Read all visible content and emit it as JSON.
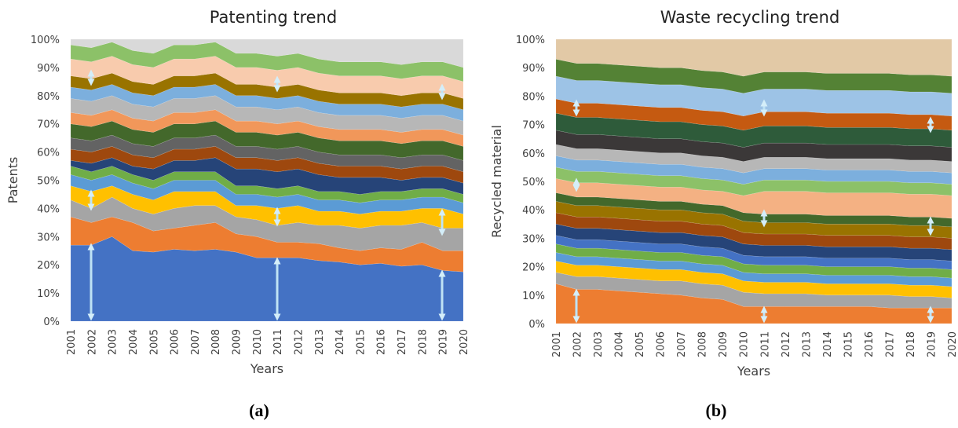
{
  "chart_data": [
    {
      "type": "area",
      "stacked": true,
      "title": "Patenting trend",
      "y_label": "Patents",
      "x_label": "Years",
      "caption": "(a)",
      "categories": [
        "2001",
        "2002",
        "2003",
        "2004",
        "2005",
        "2006",
        "2007",
        "2008",
        "2009",
        "2010",
        "2011",
        "2012",
        "2013",
        "2014",
        "2015",
        "2016",
        "2017",
        "2018",
        "2019",
        "2020"
      ],
      "ylim": [
        0,
        100
      ],
      "yticks": [
        {
          "value": 0,
          "label": "0%"
        },
        {
          "value": 10,
          "label": "10%"
        },
        {
          "value": 20,
          "label": "20%"
        },
        {
          "value": 30,
          "label": "30%"
        },
        {
          "value": 40,
          "label": "40%"
        },
        {
          "value": 50,
          "label": "50%"
        },
        {
          "value": 60,
          "label": "60%"
        },
        {
          "value": 70,
          "label": "70%"
        },
        {
          "value": 80,
          "label": "80%"
        },
        {
          "value": 90,
          "label": "90%"
        },
        {
          "value": 100,
          "label": "100%"
        }
      ],
      "series": [
        {
          "color": "#4472c4",
          "values": [
            27,
            27,
            30,
            25,
            24.5,
            25.5,
            25,
            25.5,
            24.5,
            22.5,
            22.5,
            22.5,
            21.5,
            21,
            20,
            20.5,
            19.5,
            20,
            18,
            17.5
          ]
        },
        {
          "color": "#ed7d31",
          "values": [
            10,
            8,
            7,
            10,
            7.5,
            7.5,
            9,
            9.5,
            6.5,
            7.5,
            5.5,
            5.5,
            6,
            5,
            5,
            5.5,
            6,
            8,
            7,
            7.5
          ]
        },
        {
          "color": "#a5a5a5",
          "values": [
            6,
            5,
            7,
            5,
            6,
            7,
            7,
            6,
            6,
            6,
            6,
            7,
            6.5,
            8,
            8,
            8,
            8.5,
            7,
            8,
            8
          ]
        },
        {
          "color": "#ffc000",
          "values": [
            5,
            6,
            4,
            5,
            5,
            6,
            5,
            5,
            4,
            5,
            6,
            6,
            5,
            5,
            5,
            5,
            5,
            5,
            7,
            5
          ]
        },
        {
          "color": "#5b9bd5",
          "values": [
            4,
            4,
            4,
            4,
            4,
            4,
            4,
            4,
            4,
            4,
            4,
            4,
            4,
            4,
            4,
            4,
            4,
            4,
            4,
            4
          ]
        },
        {
          "color": "#70ad47",
          "values": [
            3,
            3,
            3,
            3,
            3,
            3,
            3,
            3,
            3,
            3,
            3,
            3,
            3,
            3,
            3,
            3,
            3,
            3,
            3,
            3
          ]
        },
        {
          "color": "#264478",
          "values": [
            2,
            3,
            3,
            3,
            4,
            4,
            4,
            5,
            6,
            6,
            6,
            6,
            6,
            5,
            6,
            5,
            4,
            4,
            4,
            4
          ]
        },
        {
          "color": "#9e480e",
          "values": [
            4,
            4,
            4,
            4,
            4,
            4,
            4,
            4,
            4,
            4,
            4,
            4,
            4,
            4,
            4,
            4,
            4,
            4,
            4,
            4
          ]
        },
        {
          "color": "#636363",
          "values": [
            4,
            4,
            4,
            4,
            4,
            4,
            4,
            4,
            4,
            4,
            4,
            4,
            4,
            4,
            4,
            4,
            4,
            4,
            4,
            4
          ]
        },
        {
          "color": "#43682b",
          "values": [
            5,
            5,
            5,
            5,
            5,
            5,
            5,
            5,
            5,
            5,
            5,
            5,
            5,
            5,
            5,
            5,
            5,
            5,
            5,
            5
          ]
        },
        {
          "color": "#f1975a",
          "values": [
            4,
            4,
            4,
            4,
            4,
            4,
            4,
            4,
            4,
            4,
            4,
            4,
            4,
            4,
            4,
            4,
            4,
            4,
            4,
            4
          ]
        },
        {
          "color": "#b7b7b7",
          "values": [
            5,
            5,
            5,
            5,
            5,
            5,
            5,
            5,
            5,
            5,
            5,
            5,
            5,
            5,
            5,
            5,
            5,
            5,
            5,
            5
          ]
        },
        {
          "color": "#7cafdd",
          "values": [
            4,
            4,
            4,
            4,
            4,
            4,
            4,
            4,
            4,
            4,
            4,
            4,
            4,
            4,
            4,
            4,
            4,
            4,
            4,
            4
          ]
        },
        {
          "color": "#997300",
          "values": [
            4,
            4,
            4,
            4,
            4,
            4,
            4,
            4,
            4,
            4,
            4,
            4,
            4,
            4,
            4,
            4,
            4,
            4,
            4,
            4
          ]
        },
        {
          "color": "#f8cbad",
          "values": [
            6,
            6,
            6,
            6,
            6,
            6,
            6,
            6,
            6,
            6,
            6,
            6,
            6,
            6,
            6,
            6,
            6,
            6,
            6,
            6
          ]
        },
        {
          "color": "#8cc168",
          "values": [
            5,
            5,
            5,
            5,
            5,
            5,
            5,
            5,
            5,
            5,
            5,
            5,
            5,
            5,
            5,
            5,
            5,
            5,
            5,
            5
          ]
        },
        {
          "color": "#d9d9d9",
          "values": [
            2,
            3,
            1,
            4,
            5,
            2,
            2,
            1,
            5,
            5,
            6,
            5,
            7,
            8,
            8,
            8,
            9,
            8,
            8,
            10
          ]
        }
      ]
    },
    {
      "type": "area",
      "stacked": true,
      "title": "Waste recycling trend",
      "y_label": "Recycled material",
      "x_label": "Years",
      "caption": "(b)",
      "categories": [
        "2001",
        "2002",
        "2003",
        "2004",
        "2005",
        "2006",
        "2007",
        "2008",
        "2009",
        "2010",
        "2011",
        "2012",
        "2013",
        "2014",
        "2015",
        "2016",
        "2017",
        "2018",
        "2019",
        "2020"
      ],
      "ylim": [
        0,
        100
      ],
      "yticks": [
        {
          "value": 0,
          "label": "0%"
        },
        {
          "value": 10,
          "label": "10%"
        },
        {
          "value": 20,
          "label": "20%"
        },
        {
          "value": 30,
          "label": "30%"
        },
        {
          "value": 40,
          "label": "40%"
        },
        {
          "value": 50,
          "label": "50%"
        },
        {
          "value": 60,
          "label": "60%"
        },
        {
          "value": 70,
          "label": "70%"
        },
        {
          "value": 80,
          "label": "80%"
        },
        {
          "value": 90,
          "label": "90%"
        },
        {
          "value": 100,
          "label": "100%"
        }
      ],
      "series": [
        {
          "color": "#ed7d31",
          "values": [
            14,
            12,
            12,
            11.5,
            11,
            10.5,
            10,
            9,
            8.5,
            6,
            6,
            6,
            6,
            6,
            6,
            6,
            5.5,
            5.5,
            5.5,
            5.5
          ]
        },
        {
          "color": "#a5a5a5",
          "values": [
            4,
            4.5,
            4.5,
            4.5,
            4.5,
            4.5,
            5,
            5,
            5,
            5,
            4.5,
            4.5,
            4.5,
            4,
            4,
            4,
            4.5,
            4,
            4,
            3.5
          ]
        },
        {
          "color": "#ffc000",
          "values": [
            4,
            4,
            4,
            4,
            4,
            4,
            4,
            4,
            4,
            4,
            4,
            4,
            4,
            4,
            4,
            4,
            4,
            4,
            4,
            4
          ]
        },
        {
          "color": "#5b9bd5",
          "values": [
            3,
            3,
            3,
            3,
            3,
            3,
            3,
            3,
            3,
            3,
            3,
            3,
            3,
            3,
            3,
            3,
            3,
            3,
            3,
            3
          ]
        },
        {
          "color": "#70ad47",
          "values": [
            3,
            3,
            3,
            3,
            3,
            3,
            3,
            3,
            3,
            3,
            3,
            3,
            3,
            3,
            3,
            3,
            3,
            3,
            3,
            3
          ]
        },
        {
          "color": "#4472c4",
          "values": [
            3,
            3,
            3,
            3,
            3,
            3,
            3,
            3,
            3,
            3,
            3,
            3,
            3,
            3,
            3,
            3,
            3,
            3,
            3,
            3
          ]
        },
        {
          "color": "#264478",
          "values": [
            4,
            4,
            4,
            4,
            4,
            4,
            4,
            4,
            4,
            4,
            4,
            4,
            4,
            4,
            4,
            4,
            4,
            4,
            4,
            4
          ]
        },
        {
          "color": "#9e480e",
          "values": [
            4,
            4,
            4,
            4,
            4,
            4,
            4,
            4,
            4,
            4,
            4,
            4,
            4,
            4,
            4,
            4,
            4,
            4,
            4,
            4
          ]
        },
        {
          "color": "#997300",
          "values": [
            4,
            4,
            4,
            4,
            4,
            4,
            4,
            4,
            4,
            4,
            4,
            4,
            4,
            4,
            4,
            4,
            4,
            4,
            4,
            4
          ]
        },
        {
          "color": "#43682b",
          "values": [
            3,
            3,
            3,
            3,
            3,
            3,
            3,
            3,
            3,
            3,
            3,
            3,
            3,
            3,
            3,
            3,
            3,
            3,
            3,
            3
          ]
        },
        {
          "color": "#f4b183",
          "values": [
            5,
            5,
            5,
            5,
            5,
            5,
            5,
            5,
            5,
            6,
            8,
            8,
            8,
            8,
            8,
            8,
            8,
            8,
            8,
            8
          ]
        },
        {
          "color": "#8cc168",
          "values": [
            4,
            4,
            4,
            4,
            4,
            4,
            4,
            4,
            4,
            4,
            4,
            4,
            4,
            4,
            4,
            4,
            4,
            4,
            4,
            4
          ]
        },
        {
          "color": "#7cafdd",
          "values": [
            4,
            4,
            4,
            4,
            4,
            4,
            4,
            4,
            4,
            4,
            4,
            4,
            4,
            4,
            4,
            4,
            4,
            4,
            4,
            4
          ]
        },
        {
          "color": "#b7b7b7",
          "values": [
            4,
            4,
            4,
            4,
            4,
            4,
            4,
            4,
            4,
            4,
            4,
            4,
            4,
            4,
            4,
            4,
            4,
            4,
            4,
            4
          ]
        },
        {
          "color": "#3b3838",
          "values": [
            5,
            5,
            5,
            5,
            5,
            5,
            5,
            5,
            5,
            5,
            5,
            5,
            5,
            5,
            5,
            5,
            5,
            5,
            5,
            5
          ]
        },
        {
          "color": "#2e5b3a",
          "values": [
            6,
            6,
            6,
            6,
            6,
            6,
            6,
            6,
            6,
            6,
            6,
            6,
            6,
            6,
            6,
            6,
            6,
            6,
            6,
            6
          ]
        },
        {
          "color": "#c55a11",
          "values": [
            5,
            5,
            5,
            5,
            5,
            5,
            5,
            5,
            5,
            5,
            5,
            5,
            5,
            5,
            5,
            5,
            5,
            5,
            5,
            5
          ]
        },
        {
          "color": "#9dc3e6",
          "values": [
            8,
            8,
            8,
            8,
            8,
            8,
            8,
            8,
            8,
            8,
            8,
            8,
            8,
            8,
            8,
            8,
            8,
            8,
            8,
            8
          ]
        },
        {
          "color": "#548235",
          "values": [
            6,
            6,
            6,
            6,
            6,
            6,
            6,
            6,
            6,
            6,
            6,
            6,
            6,
            6,
            6,
            6,
            6,
            6,
            6,
            6
          ]
        },
        {
          "color": "#e2c9a6",
          "values": [
            7,
            8.5,
            8.5,
            9,
            9.5,
            10,
            10,
            11,
            11.5,
            13,
            11.5,
            11.5,
            11.5,
            12,
            12,
            12,
            12,
            12.5,
            12.5,
            13
          ]
        }
      ]
    }
  ]
}
